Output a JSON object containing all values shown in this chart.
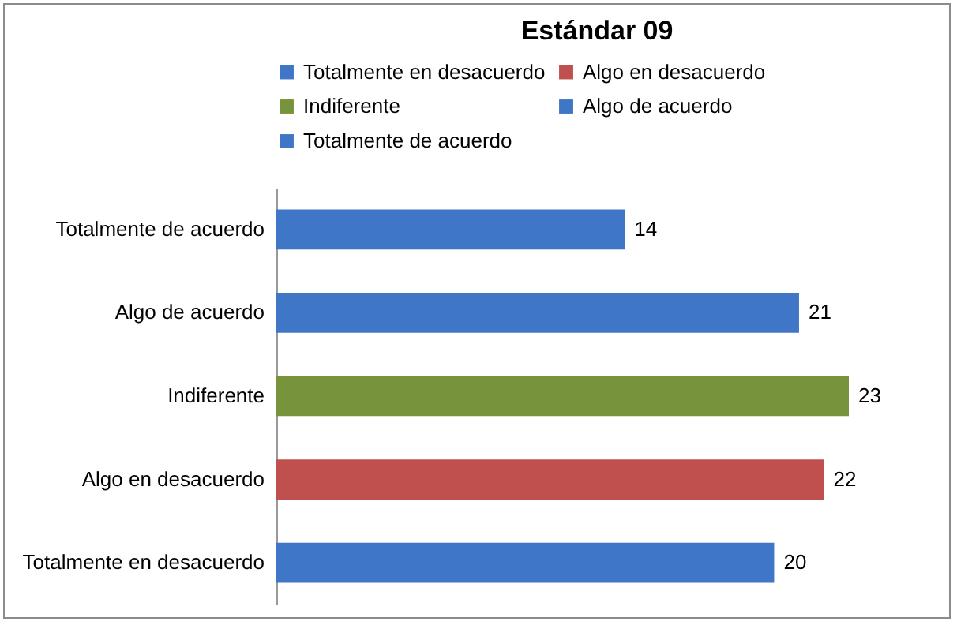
{
  "chart_data": {
    "type": "bar",
    "title": "Estándar 09",
    "orientation": "horizontal",
    "data_labels": true,
    "legend": "top",
    "categories": [
      "Totalmente de acuerdo",
      "Algo de acuerdo",
      "Indiferente",
      "Algo en desacuerdo",
      "Totalmente en desacuerdo"
    ],
    "series": [
      {
        "name": "Totalmente en desacuerdo",
        "color": "#3f76c6",
        "values": [
          null,
          null,
          null,
          null,
          20
        ]
      },
      {
        "name": "Algo en desacuerdo",
        "color": "#c0504d",
        "values": [
          null,
          null,
          null,
          22,
          null
        ]
      },
      {
        "name": "Indiferente",
        "color": "#77933c",
        "values": [
          null,
          null,
          23,
          null,
          null
        ]
      },
      {
        "name": "Algo de acuerdo",
        "color": "#3f76c6",
        "values": [
          null,
          21,
          null,
          null,
          null
        ]
      },
      {
        "name": "Totalmente de acuerdo",
        "color": "#3f76c6",
        "values": [
          14,
          null,
          null,
          null,
          null
        ]
      }
    ]
  }
}
